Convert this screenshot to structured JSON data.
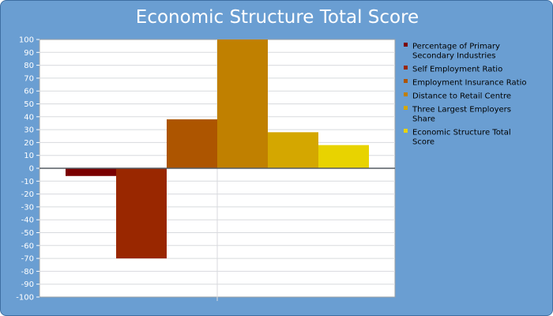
{
  "chart_data": {
    "type": "bar",
    "title": "Economic Structure Total Score",
    "xlabel": "",
    "ylabel": "",
    "ylim": [
      -100,
      100
    ],
    "ytick_step": 10,
    "grid": true,
    "legend_position": "right",
    "series": [
      {
        "name": "Percentage of Primary Secondary Industries",
        "value": -6,
        "color": "#7a0000"
      },
      {
        "name": "Self Employment Ratio",
        "value": -70,
        "color": "#992700"
      },
      {
        "name": "Employment Insurance Ratio",
        "value": 38,
        "color": "#ad5500"
      },
      {
        "name": "Distance to Retail Centre",
        "value": 100,
        "color": "#c08000"
      },
      {
        "name": "Three Largest Employers Share",
        "value": 28,
        "color": "#d4a700"
      },
      {
        "name": "Economic Structure Total Score",
        "value": 18,
        "color": "#e8d300"
      }
    ]
  }
}
